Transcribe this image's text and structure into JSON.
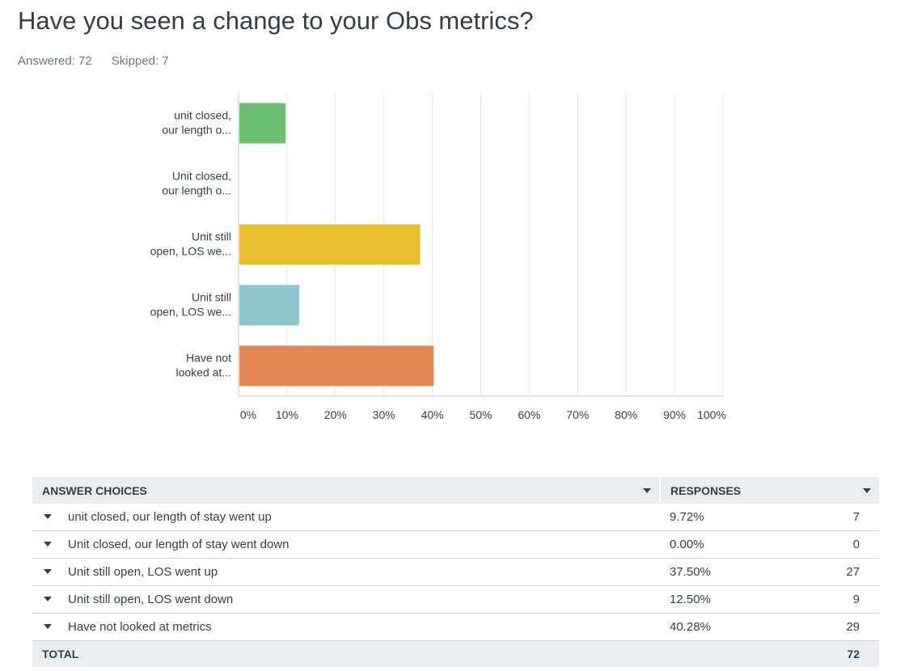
{
  "question": "Have you seen a change to your Obs metrics?",
  "meta": {
    "answered": "Answered: 72",
    "skipped": "Skipped: 7"
  },
  "chart_data": {
    "type": "bar",
    "orientation": "horizontal",
    "categories": [
      [
        "unit closed,",
        "our length o..."
      ],
      [
        "Unit closed,",
        "our length o..."
      ],
      [
        "Unit still",
        "open, LOS we..."
      ],
      [
        "Unit still",
        "open, LOS we..."
      ],
      [
        "Have not",
        "looked at..."
      ]
    ],
    "values": [
      9.72,
      0.0,
      37.5,
      12.5,
      40.28
    ],
    "colors": [
      "#6bbf73",
      "#6bbf73",
      "#e8bd2e",
      "#8dc6cc",
      "#e48955"
    ],
    "xlim": [
      0,
      100
    ],
    "xticks": [
      "0%",
      "10%",
      "20%",
      "30%",
      "40%",
      "50%",
      "60%",
      "70%",
      "80%",
      "90%",
      "100%"
    ],
    "grid": true
  },
  "table": {
    "headers": {
      "choices": "ANSWER CHOICES",
      "responses": "RESPONSES"
    },
    "rows": [
      {
        "choice": "unit closed, our length of stay went up",
        "percent": "9.72%",
        "count": "7"
      },
      {
        "choice": "Unit closed, our length of stay went down",
        "percent": "0.00%",
        "count": "0"
      },
      {
        "choice": "Unit still open, LOS went up",
        "percent": "37.50%",
        "count": "27"
      },
      {
        "choice": "Unit still open, LOS went down",
        "percent": "12.50%",
        "count": "9"
      },
      {
        "choice": "Have not looked at metrics",
        "percent": "40.28%",
        "count": "29"
      }
    ],
    "total": {
      "label": "TOTAL",
      "count": "72"
    }
  }
}
